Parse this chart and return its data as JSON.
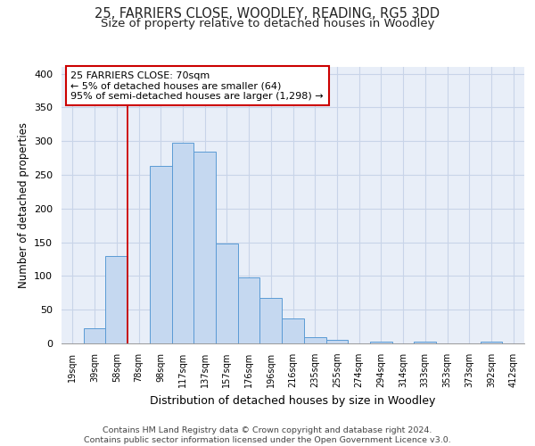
{
  "title": "25, FARRIERS CLOSE, WOODLEY, READING, RG5 3DD",
  "subtitle": "Size of property relative to detached houses in Woodley",
  "xlabel": "Distribution of detached houses by size in Woodley",
  "ylabel": "Number of detached properties",
  "bar_labels": [
    "19sqm",
    "39sqm",
    "58sqm",
    "78sqm",
    "98sqm",
    "117sqm",
    "137sqm",
    "157sqm",
    "176sqm",
    "196sqm",
    "216sqm",
    "235sqm",
    "255sqm",
    "274sqm",
    "294sqm",
    "314sqm",
    "333sqm",
    "353sqm",
    "373sqm",
    "392sqm",
    "412sqm"
  ],
  "bar_values": [
    0,
    22,
    130,
    0,
    263,
    298,
    285,
    148,
    98,
    68,
    37,
    9,
    5,
    0,
    3,
    0,
    2,
    0,
    0,
    2,
    0
  ],
  "bar_color": "#c5d8f0",
  "bar_edge_color": "#5b9bd5",
  "vline_color": "#cc0000",
  "annotation_text": "25 FARRIERS CLOSE: 70sqm\n← 5% of detached houses are smaller (64)\n95% of semi-detached houses are larger (1,298) →",
  "annotation_box_edge": "#cc0000",
  "annotation_box_face": "#ffffff",
  "ylim": [
    0,
    410
  ],
  "yticks": [
    0,
    50,
    100,
    150,
    200,
    250,
    300,
    350,
    400
  ],
  "footer_text": "Contains HM Land Registry data © Crown copyright and database right 2024.\nContains public sector information licensed under the Open Government Licence v3.0.",
  "title_fontsize": 10.5,
  "subtitle_fontsize": 9.5,
  "xlabel_fontsize": 9,
  "ylabel_fontsize": 8.5,
  "footer_fontsize": 6.8,
  "bg_color": "#e8eef8",
  "grid_color": "#c8d4e8"
}
